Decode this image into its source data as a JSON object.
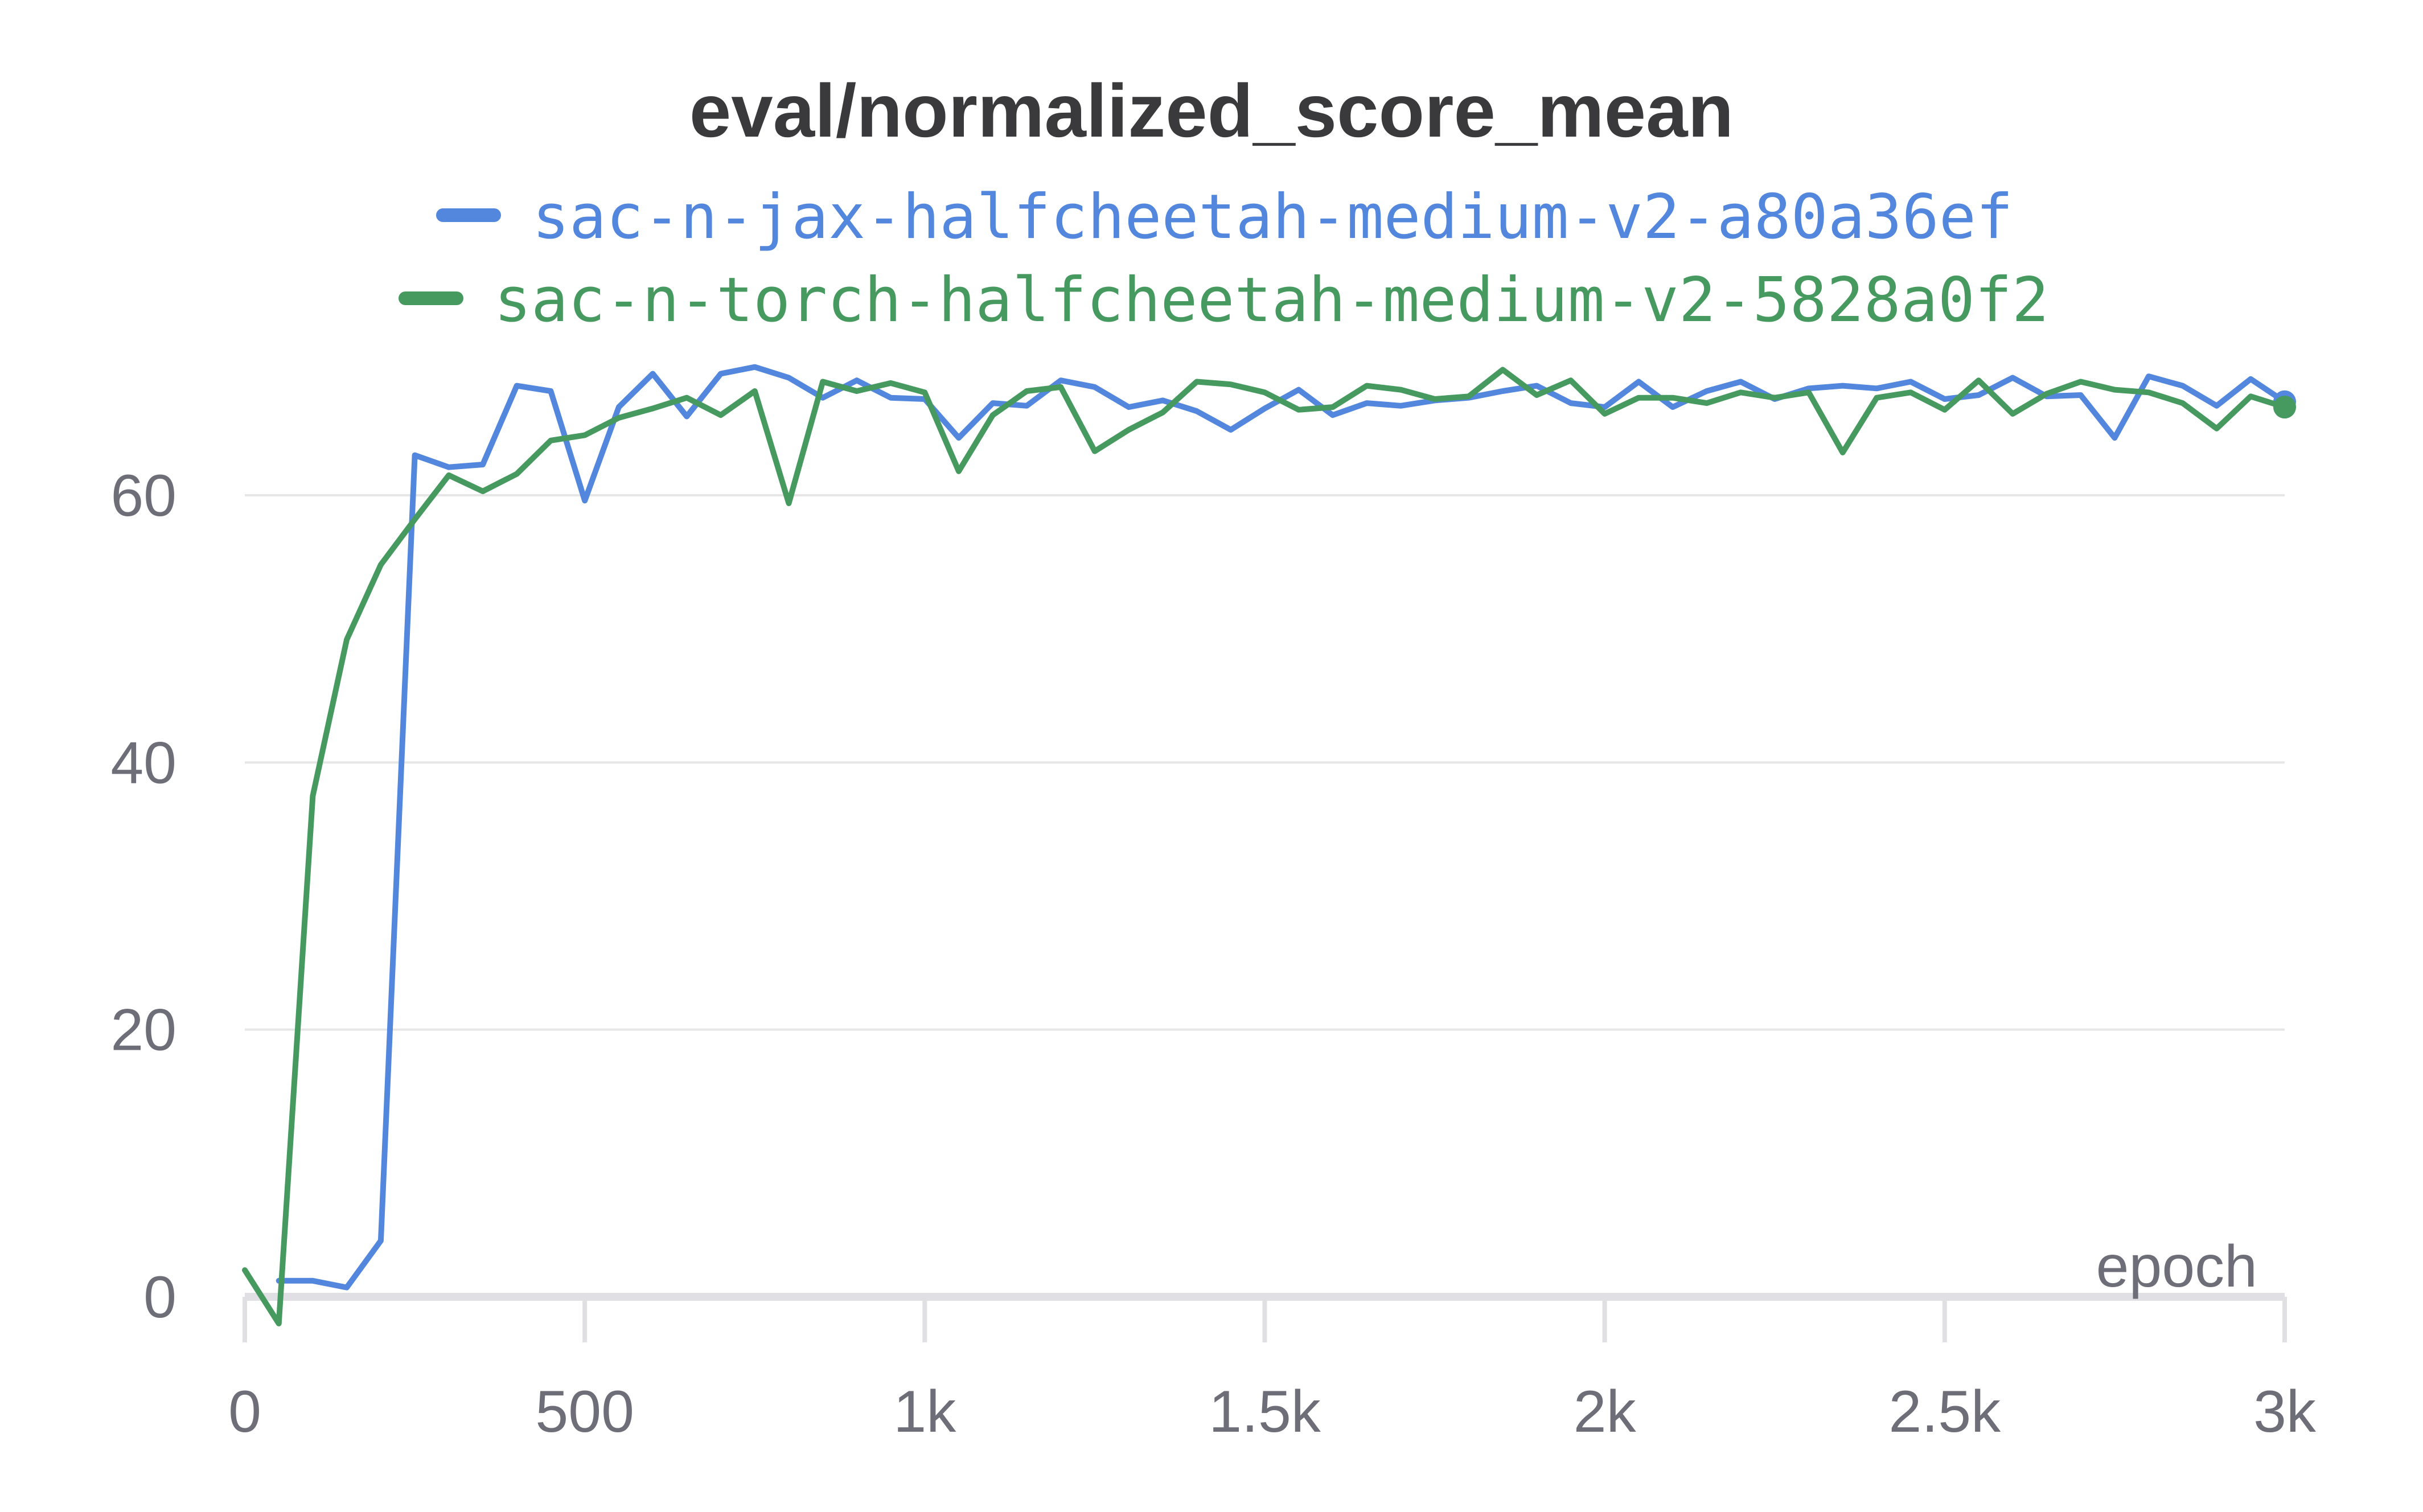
{
  "chart_data": {
    "type": "line",
    "title": "eval/normalized_score_mean",
    "xlabel": "epoch",
    "ylabel": "",
    "xlim": [
      0,
      3000
    ],
    "ylim": [
      -3,
      72
    ],
    "grid": true,
    "legend_position": "top",
    "x_ticks": [
      {
        "value": 0,
        "label": "0"
      },
      {
        "value": 500,
        "label": "500"
      },
      {
        "value": 1000,
        "label": "1k"
      },
      {
        "value": 1500,
        "label": "1.5k"
      },
      {
        "value": 2000,
        "label": "2k"
      },
      {
        "value": 2500,
        "label": "2.5k"
      },
      {
        "value": 3000,
        "label": "3k"
      }
    ],
    "y_ticks": [
      {
        "value": 0,
        "label": "0"
      },
      {
        "value": 20,
        "label": "20"
      },
      {
        "value": 40,
        "label": "40"
      },
      {
        "value": 60,
        "label": "60"
      }
    ],
    "series": [
      {
        "name": "sac-n-jax-halfcheetah-medium-v2-a80a36ef",
        "color": "#5387dd",
        "x": [
          50,
          100,
          150,
          200,
          250,
          300,
          350,
          400,
          450,
          500,
          550,
          600,
          650,
          700,
          750,
          800,
          850,
          900,
          950,
          1000,
          1050,
          1100,
          1150,
          1200,
          1250,
          1300,
          1350,
          1400,
          1450,
          1500,
          1550,
          1600,
          1650,
          1700,
          1750,
          1800,
          1850,
          1900,
          1950,
          2000,
          2050,
          2100,
          2150,
          2200,
          2250,
          2300,
          2350,
          2400,
          2450,
          2500,
          2550,
          2600,
          2650,
          2700,
          2750,
          2800,
          2850,
          2900,
          2950,
          3000
        ],
        "y": [
          1.2,
          1.2,
          0.7,
          4.2,
          63.0,
          62.1,
          62.3,
          68.2,
          67.8,
          59.6,
          66.6,
          69.1,
          65.9,
          69.1,
          69.6,
          68.8,
          67.3,
          68.6,
          67.3,
          67.2,
          64.3,
          66.9,
          66.7,
          68.6,
          68.1,
          66.6,
          67.1,
          66.3,
          64.9,
          66.5,
          67.9,
          66.0,
          66.9,
          66.7,
          67.1,
          67.3,
          67.8,
          68.2,
          66.9,
          66.6,
          68.5,
          66.6,
          67.8,
          68.5,
          67.2,
          68.0,
          68.2,
          68.0,
          68.5,
          67.2,
          67.5,
          68.8,
          67.4,
          67.5,
          64.3,
          68.9,
          68.2,
          66.7,
          68.7,
          67.0
        ]
      },
      {
        "name": "sac-n-torch-halfcheetah-medium-v2-5828a0f2",
        "color": "#479a5f",
        "x": [
          0,
          50,
          100,
          150,
          200,
          250,
          300,
          350,
          400,
          450,
          500,
          550,
          600,
          650,
          700,
          750,
          800,
          850,
          900,
          950,
          1000,
          1050,
          1100,
          1150,
          1200,
          1250,
          1300,
          1350,
          1400,
          1450,
          1500,
          1550,
          1600,
          1650,
          1700,
          1750,
          1800,
          1850,
          1900,
          1950,
          2000,
          2050,
          2100,
          2150,
          2200,
          2250,
          2300,
          2350,
          2400,
          2450,
          2500,
          2550,
          2600,
          2650,
          2700,
          2750,
          2800,
          2850,
          2900,
          2950,
          3000
        ],
        "y": [
          2.0,
          -2.0,
          37.5,
          49.2,
          54.8,
          58.2,
          61.5,
          60.3,
          61.6,
          64.1,
          64.5,
          65.8,
          66.5,
          67.3,
          66.0,
          67.8,
          59.4,
          68.5,
          67.8,
          68.4,
          67.7,
          61.8,
          66.0,
          67.8,
          68.1,
          63.3,
          64.9,
          66.2,
          68.5,
          68.3,
          67.7,
          66.4,
          66.6,
          68.2,
          67.9,
          67.2,
          67.4,
          69.4,
          67.5,
          68.6,
          66.1,
          67.3,
          67.3,
          66.9,
          67.7,
          67.3,
          67.7,
          63.2,
          67.3,
          67.7,
          66.4,
          68.6,
          66.1,
          67.6,
          68.5,
          67.9,
          67.7,
          66.9,
          65.0,
          67.4,
          66.6
        ]
      }
    ]
  }
}
